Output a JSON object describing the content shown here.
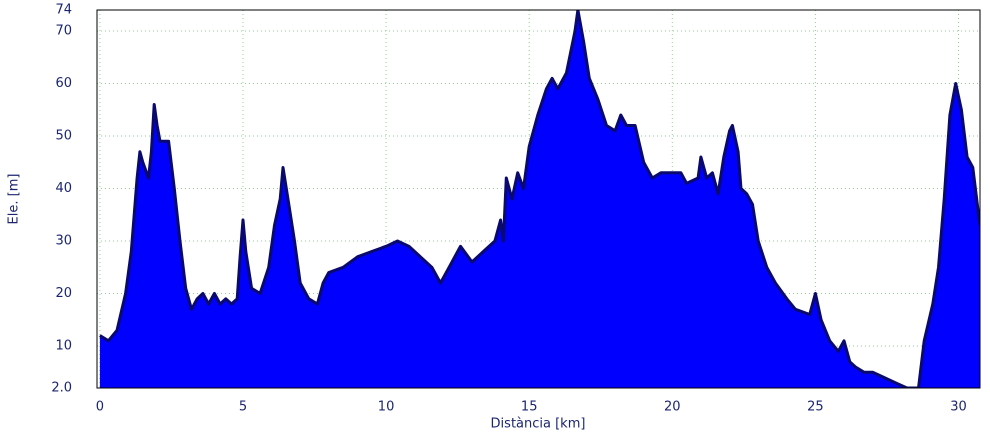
{
  "chart_data": {
    "type": "area",
    "x_label": "Distància [km]",
    "y_label": "Ele. [m]",
    "x": [
      0,
      0.3,
      0.6,
      0.9,
      1.1,
      1.3,
      1.4,
      1.5,
      1.7,
      1.8,
      1.9,
      2.0,
      2.1,
      2.4,
      2.6,
      2.8,
      3.0,
      3.2,
      3.4,
      3.6,
      3.8,
      4.0,
      4.2,
      4.4,
      4.6,
      4.8,
      4.9,
      5.0,
      5.1,
      5.3,
      5.6,
      5.9,
      6.1,
      6.3,
      6.4,
      6.6,
      6.8,
      7.0,
      7.3,
      7.6,
      7.8,
      8.0,
      8.5,
      9.0,
      9.5,
      10.0,
      10.4,
      10.8,
      11.2,
      11.6,
      11.9,
      12.2,
      12.6,
      13.0,
      13.4,
      13.8,
      14.0,
      14.1,
      14.2,
      14.4,
      14.6,
      14.8,
      15.0,
      15.3,
      15.6,
      15.8,
      16.0,
      16.3,
      16.6,
      16.7,
      16.9,
      17.1,
      17.4,
      17.7,
      18.0,
      18.2,
      18.4,
      18.7,
      19.0,
      19.3,
      19.6,
      20.0,
      20.3,
      20.5,
      20.9,
      21.0,
      21.2,
      21.4,
      21.6,
      21.8,
      22.0,
      22.1,
      22.3,
      22.4,
      22.6,
      22.8,
      23.0,
      23.3,
      23.6,
      24.0,
      24.3,
      24.8,
      25.0,
      25.2,
      25.5,
      25.8,
      26.0,
      26.2,
      26.4,
      26.7,
      27.0,
      27.4,
      27.8,
      28.2,
      28.6,
      28.8,
      29.1,
      29.3,
      29.5,
      29.7,
      29.9,
      30.1,
      30.3,
      30.5,
      30.7,
      30.75
    ],
    "values": [
      12,
      11,
      13,
      20,
      28,
      42,
      47,
      45,
      42,
      47,
      56,
      52,
      49,
      49,
      40,
      30,
      21,
      17,
      19,
      20,
      18,
      20,
      18,
      19,
      18,
      19,
      27,
      34,
      28,
      21,
      20,
      25,
      33,
      38,
      44,
      37,
      30,
      22,
      19,
      18,
      22,
      24,
      25,
      27,
      28,
      29,
      30,
      29,
      27,
      25,
      22,
      25,
      29,
      26,
      28,
      30,
      34,
      30,
      42,
      38,
      43,
      40,
      48,
      54,
      59,
      61,
      59,
      62,
      70,
      74,
      68,
      61,
      57,
      52,
      51,
      54,
      52,
      52,
      45,
      42,
      43,
      43,
      43,
      41,
      42,
      46,
      42,
      43,
      39,
      46,
      51,
      52,
      47,
      40,
      39,
      37,
      30,
      25,
      22,
      19,
      17,
      16,
      20,
      15,
      11,
      9,
      11,
      7,
      6,
      5,
      5,
      4,
      3,
      2,
      2,
      11,
      18,
      25,
      38,
      54,
      60,
      55,
      46,
      44,
      35,
      33
    ],
    "fill_color": "#0000ff",
    "line_color": "#0a0a6e",
    "xlim": [
      -0.1,
      30.75
    ],
    "ylim": [
      2,
      74
    ],
    "xticks": [
      0,
      5,
      10,
      15,
      20,
      25,
      30
    ],
    "yticks": [
      {
        "value": 2,
        "label": "2.0"
      },
      10,
      20,
      30,
      40,
      50,
      60,
      70,
      74
    ],
    "grid": true
  }
}
